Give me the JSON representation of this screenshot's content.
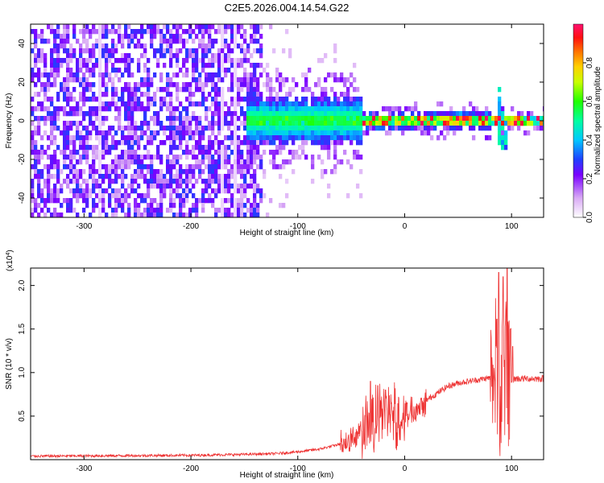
{
  "figure_title": "C2E5.2026.004.14.54.G22",
  "chart_data": [
    {
      "type": "heatmap",
      "xlabel": "Height of straight line (km)",
      "ylabel": "Frequency (Hz)",
      "xlim": [
        -350,
        130
      ],
      "ylim": [
        -50,
        50
      ],
      "x_ticks": [
        -300,
        -200,
        -100,
        0,
        100
      ],
      "y_ticks": [
        -40,
        -20,
        0,
        20,
        40
      ],
      "colorbar": {
        "label": "Normalized spectral amplitude",
        "range": [
          0.0,
          1.0
        ],
        "ticks": [
          0.0,
          0.2,
          0.4,
          0.6,
          0.8
        ]
      },
      "features": {
        "noise_region_x": [
          -350,
          -135
        ],
        "signal_start_x": -150,
        "signal_center_y": 0,
        "vertical_stripes_x": [
          -285,
          -172,
          -160
        ],
        "spike_x": 90
      }
    },
    {
      "type": "line",
      "xlabel": "Height of straight line (km)",
      "ylabel": "SNR (10 * v/v)",
      "y_multiplier": "(x10^4)",
      "y_multiplier_base": "(x10",
      "y_multiplier_exp": "4",
      "xlim": [
        -350,
        130
      ],
      "ylim": [
        0,
        2.2
      ],
      "x_ticks": [
        -300,
        -200,
        -100,
        0,
        100
      ],
      "y_ticks": [
        0.5,
        1.0,
        1.5,
        2.0
      ],
      "y_tick_labels": [
        "0.5",
        "1.0",
        "1.5",
        "2.0"
      ],
      "series_color": "#ee3333",
      "profile": [
        [
          -350,
          0.04
        ],
        [
          -200,
          0.05
        ],
        [
          -150,
          0.06
        ],
        [
          -120,
          0.07
        ],
        [
          -100,
          0.09
        ],
        [
          -80,
          0.12
        ],
        [
          -60,
          0.18
        ],
        [
          -45,
          0.28
        ],
        [
          -35,
          0.38
        ],
        [
          -25,
          0.48
        ],
        [
          -15,
          0.52
        ],
        [
          -5,
          0.48
        ],
        [
          0,
          0.52
        ],
        [
          10,
          0.6
        ],
        [
          20,
          0.68
        ],
        [
          30,
          0.76
        ],
        [
          40,
          0.84
        ],
        [
          50,
          0.88
        ],
        [
          60,
          0.9
        ],
        [
          70,
          0.92
        ],
        [
          80,
          0.94
        ],
        [
          95,
          0.92
        ],
        [
          105,
          0.93
        ],
        [
          130,
          0.93
        ]
      ],
      "spikes": [
        {
          "x": 88,
          "value": 2.15
        },
        {
          "x": 92,
          "value": 2.1
        },
        {
          "x": 96,
          "value": 2.2
        },
        {
          "x": 99,
          "value": 1.5
        },
        {
          "x": 101,
          "value": 1.3
        },
        {
          "x": -32,
          "value": 0.9
        },
        {
          "x": -25,
          "value": 0.85
        },
        {
          "x": -18,
          "value": 0.8
        }
      ]
    }
  ]
}
